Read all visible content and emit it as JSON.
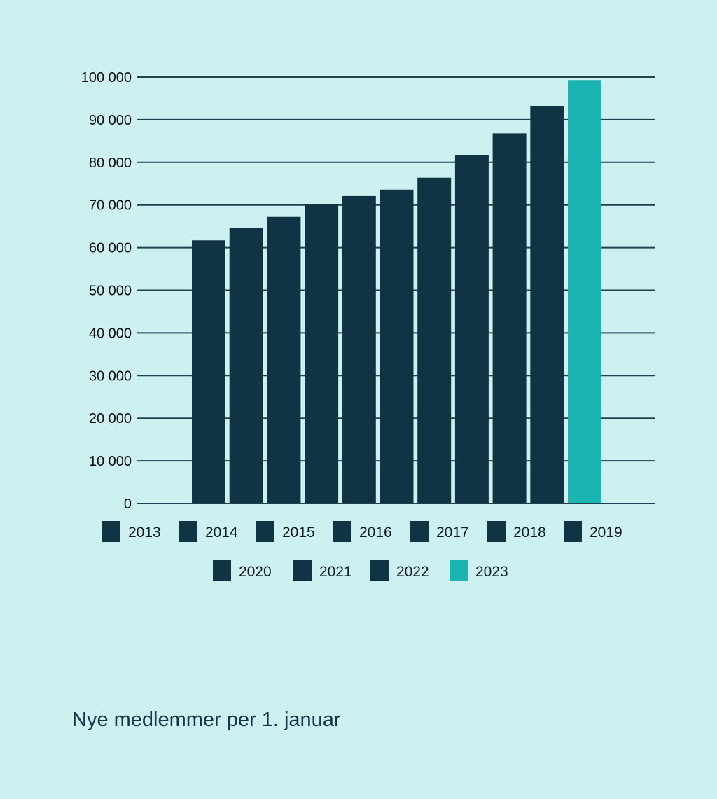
{
  "chart_data": {
    "type": "bar",
    "categories": [
      "2013",
      "2014",
      "2015",
      "2016",
      "2017",
      "2018",
      "2019",
      "2020",
      "2021",
      "2022",
      "2023"
    ],
    "values": [
      61700,
      64700,
      67200,
      70100,
      72100,
      73600,
      76400,
      81700,
      86800,
      93100,
      99300
    ],
    "colors": [
      "#0f3545",
      "#0f3545",
      "#0f3545",
      "#0f3545",
      "#0f3545",
      "#0f3545",
      "#0f3545",
      "#0f3545",
      "#0f3545",
      "#0f3545",
      "#1ab5b3"
    ],
    "ylim": [
      0,
      100000
    ],
    "yticks": [
      0,
      10000,
      20000,
      30000,
      40000,
      50000,
      60000,
      70000,
      80000,
      90000,
      100000
    ],
    "ytick_labels": [
      "0",
      "10 000",
      "20 000",
      "30 000",
      "40 000",
      "50 000",
      "60 000",
      "70 000",
      "80 000",
      "90 000",
      "100 000"
    ],
    "grid": true,
    "legend": {
      "placement": "bottom",
      "entries": [
        "2013",
        "2014",
        "2015",
        "2016",
        "2017",
        "2018",
        "2019",
        "2020",
        "2021",
        "2022",
        "2023"
      ]
    },
    "caption": "Nye medlemmer per 1. januar"
  },
  "colors": {
    "background": "#cdf0f0",
    "bar": "#0f3545",
    "highlight": "#1ab5b3",
    "gridline": "#1d4250"
  }
}
